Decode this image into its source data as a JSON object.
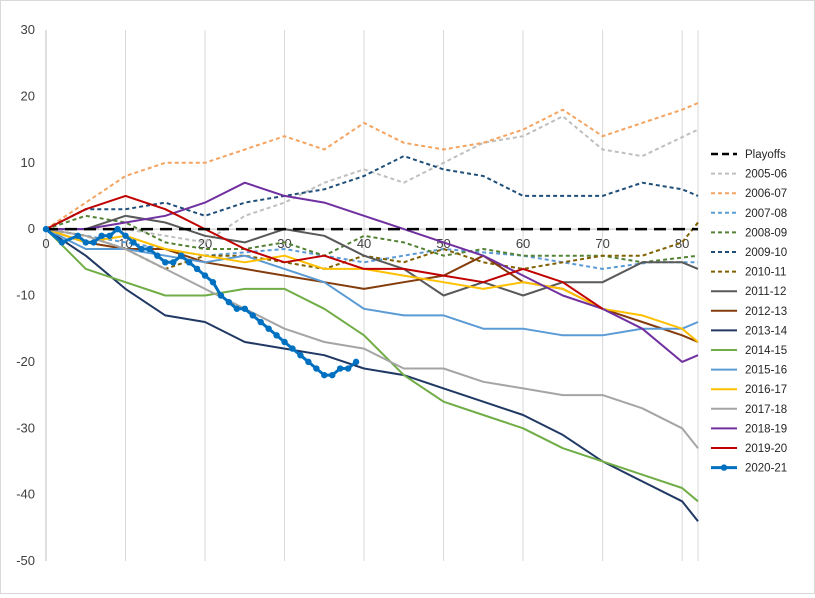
{
  "chart_data": {
    "type": "line",
    "title": "",
    "xlabel": "",
    "ylabel": "",
    "xlim": [
      0,
      82
    ],
    "ylim": [
      -50,
      30
    ],
    "x_ticks": [
      0,
      10,
      20,
      30,
      40,
      50,
      60,
      70,
      80
    ],
    "x_tick_labels": [
      "0",
      "10",
      "20",
      "30",
      "40",
      "50",
      "60",
      "70",
      "80"
    ],
    "y_ticks": [
      30,
      20,
      10,
      0,
      -10,
      -20,
      -30,
      -40,
      -50
    ],
    "y_tick_labels": [
      "30",
      "20",
      "10",
      "0",
      "-10",
      "-20",
      "-30",
      "-40",
      "-50"
    ],
    "grid": "vertical",
    "legend_position": "right",
    "series": [
      {
        "name": "Playoffs",
        "color": "#000000",
        "style": "dash-thick",
        "points": [
          [
            0,
            0
          ],
          [
            82,
            0
          ]
        ]
      },
      {
        "name": "2005-06",
        "color": "#bfbfbf",
        "style": "dash",
        "points": [
          [
            0,
            0
          ],
          [
            10,
            0
          ],
          [
            20,
            -2
          ],
          [
            25,
            2
          ],
          [
            30,
            4
          ],
          [
            35,
            7
          ],
          [
            40,
            9
          ],
          [
            45,
            7
          ],
          [
            50,
            10
          ],
          [
            55,
            13
          ],
          [
            60,
            14
          ],
          [
            65,
            17
          ],
          [
            70,
            12
          ],
          [
            75,
            11
          ],
          [
            82,
            15
          ]
        ]
      },
      {
        "name": "2006-07",
        "color": "#f4a460",
        "style": "dash",
        "points": [
          [
            0,
            0
          ],
          [
            5,
            4
          ],
          [
            10,
            8
          ],
          [
            15,
            10
          ],
          [
            20,
            10
          ],
          [
            25,
            12
          ],
          [
            30,
            14
          ],
          [
            35,
            12
          ],
          [
            40,
            16
          ],
          [
            45,
            13
          ],
          [
            50,
            12
          ],
          [
            55,
            13
          ],
          [
            60,
            15
          ],
          [
            65,
            18
          ],
          [
            70,
            14
          ],
          [
            75,
            16
          ],
          [
            80,
            18
          ],
          [
            82,
            19
          ]
        ]
      },
      {
        "name": "2007-08",
        "color": "#5b9bd5",
        "style": "dash",
        "points": [
          [
            0,
            0
          ],
          [
            10,
            -2
          ],
          [
            20,
            -4
          ],
          [
            30,
            -3
          ],
          [
            40,
            -5
          ],
          [
            50,
            -3
          ],
          [
            60,
            -4
          ],
          [
            70,
            -6
          ],
          [
            76,
            -5
          ],
          [
            82,
            -5
          ]
        ]
      },
      {
        "name": "2008-09",
        "color": "#548235",
        "style": "dash",
        "points": [
          [
            0,
            0
          ],
          [
            5,
            2
          ],
          [
            10,
            1
          ],
          [
            15,
            -2
          ],
          [
            20,
            -3
          ],
          [
            25,
            -3
          ],
          [
            30,
            -2
          ],
          [
            35,
            -4
          ],
          [
            40,
            -1
          ],
          [
            45,
            -2
          ],
          [
            50,
            -4
          ],
          [
            55,
            -3
          ],
          [
            60,
            -4
          ],
          [
            65,
            -4
          ],
          [
            70,
            -4
          ],
          [
            75,
            -5
          ],
          [
            82,
            -4
          ]
        ]
      },
      {
        "name": "2009-10",
        "color": "#1f4e79",
        "style": "dash",
        "points": [
          [
            0,
            0
          ],
          [
            5,
            3
          ],
          [
            10,
            3
          ],
          [
            15,
            4
          ],
          [
            20,
            2
          ],
          [
            25,
            4
          ],
          [
            30,
            5
          ],
          [
            35,
            6
          ],
          [
            40,
            8
          ],
          [
            45,
            11
          ],
          [
            50,
            9
          ],
          [
            55,
            8
          ],
          [
            60,
            5
          ],
          [
            65,
            5
          ],
          [
            70,
            5
          ],
          [
            75,
            7
          ],
          [
            80,
            6
          ],
          [
            82,
            5
          ]
        ]
      },
      {
        "name": "2010-11",
        "color": "#806000",
        "style": "dash",
        "points": [
          [
            0,
            0
          ],
          [
            5,
            -1
          ],
          [
            10,
            -3
          ],
          [
            15,
            -6
          ],
          [
            20,
            -4
          ],
          [
            25,
            -4
          ],
          [
            30,
            -5
          ],
          [
            35,
            -6
          ],
          [
            40,
            -4
          ],
          [
            45,
            -5
          ],
          [
            50,
            -3
          ],
          [
            55,
            -5
          ],
          [
            60,
            -6
          ],
          [
            65,
            -5
          ],
          [
            70,
            -4
          ],
          [
            75,
            -4
          ],
          [
            80,
            -2
          ],
          [
            82,
            1
          ]
        ]
      },
      {
        "name": "2011-12",
        "color": "#595959",
        "style": "solid",
        "points": [
          [
            0,
            0
          ],
          [
            5,
            0
          ],
          [
            10,
            2
          ],
          [
            15,
            1
          ],
          [
            20,
            -1
          ],
          [
            25,
            -2
          ],
          [
            30,
            0
          ],
          [
            35,
            -1
          ],
          [
            40,
            -4
          ],
          [
            45,
            -6
          ],
          [
            50,
            -10
          ],
          [
            55,
            -8
          ],
          [
            60,
            -10
          ],
          [
            65,
            -8
          ],
          [
            70,
            -8
          ],
          [
            75,
            -5
          ],
          [
            80,
            -5
          ],
          [
            82,
            -6
          ]
        ]
      },
      {
        "name": "2012-13",
        "color": "#843c0c",
        "style": "solid",
        "points": [
          [
            0,
            0
          ],
          [
            5,
            -2
          ],
          [
            10,
            -3
          ],
          [
            15,
            -3
          ],
          [
            20,
            -5
          ],
          [
            25,
            -6
          ],
          [
            30,
            -7
          ],
          [
            35,
            -8
          ],
          [
            40,
            -9
          ],
          [
            45,
            -8
          ],
          [
            50,
            -7
          ],
          [
            55,
            -4
          ],
          [
            60,
            -8
          ],
          [
            65,
            -9
          ],
          [
            70,
            -12
          ],
          [
            75,
            -14
          ],
          [
            80,
            -16
          ],
          [
            82,
            -17
          ]
        ]
      },
      {
        "name": "2013-14",
        "color": "#203864",
        "style": "solid",
        "points": [
          [
            0,
            0
          ],
          [
            5,
            -4
          ],
          [
            10,
            -9
          ],
          [
            15,
            -13
          ],
          [
            20,
            -14
          ],
          [
            25,
            -17
          ],
          [
            30,
            -18
          ],
          [
            35,
            -19
          ],
          [
            40,
            -21
          ],
          [
            45,
            -22
          ],
          [
            50,
            -24
          ],
          [
            55,
            -26
          ],
          [
            60,
            -28
          ],
          [
            65,
            -31
          ],
          [
            70,
            -35
          ],
          [
            75,
            -38
          ],
          [
            80,
            -41
          ],
          [
            82,
            -44
          ]
        ]
      },
      {
        "name": "2014-15",
        "color": "#70ad47",
        "style": "solid",
        "points": [
          [
            0,
            0
          ],
          [
            5,
            -6
          ],
          [
            10,
            -8
          ],
          [
            15,
            -10
          ],
          [
            20,
            -10
          ],
          [
            25,
            -9
          ],
          [
            30,
            -9
          ],
          [
            35,
            -12
          ],
          [
            40,
            -16
          ],
          [
            45,
            -22
          ],
          [
            50,
            -26
          ],
          [
            55,
            -28
          ],
          [
            60,
            -30
          ],
          [
            65,
            -33
          ],
          [
            70,
            -35
          ],
          [
            75,
            -37
          ],
          [
            80,
            -39
          ],
          [
            82,
            -41
          ]
        ]
      },
      {
        "name": "2015-16",
        "color": "#5b9bd5",
        "style": "solid",
        "points": [
          [
            0,
            0
          ],
          [
            5,
            -3
          ],
          [
            10,
            -3
          ],
          [
            15,
            -4
          ],
          [
            20,
            -5
          ],
          [
            25,
            -4
          ],
          [
            30,
            -6
          ],
          [
            35,
            -8
          ],
          [
            40,
            -12
          ],
          [
            45,
            -13
          ],
          [
            50,
            -13
          ],
          [
            55,
            -15
          ],
          [
            60,
            -15
          ],
          [
            65,
            -16
          ],
          [
            70,
            -16
          ],
          [
            75,
            -15
          ],
          [
            80,
            -15
          ],
          [
            82,
            -14
          ]
        ]
      },
      {
        "name": "2016-17",
        "color": "#ffc000",
        "style": "solid",
        "points": [
          [
            0,
            0
          ],
          [
            5,
            -2
          ],
          [
            10,
            -1
          ],
          [
            15,
            -3
          ],
          [
            20,
            -4
          ],
          [
            25,
            -5
          ],
          [
            30,
            -4
          ],
          [
            35,
            -6
          ],
          [
            40,
            -6
          ],
          [
            45,
            -7
          ],
          [
            50,
            -8
          ],
          [
            55,
            -9
          ],
          [
            60,
            -8
          ],
          [
            65,
            -9
          ],
          [
            70,
            -12
          ],
          [
            75,
            -13
          ],
          [
            80,
            -15
          ],
          [
            82,
            -17
          ]
        ]
      },
      {
        "name": "2017-18",
        "color": "#a5a5a5",
        "style": "solid",
        "points": [
          [
            0,
            0
          ],
          [
            5,
            -1
          ],
          [
            10,
            -3
          ],
          [
            15,
            -6
          ],
          [
            20,
            -9
          ],
          [
            25,
            -12
          ],
          [
            30,
            -15
          ],
          [
            35,
            -17
          ],
          [
            40,
            -18
          ],
          [
            45,
            -21
          ],
          [
            50,
            -21
          ],
          [
            55,
            -23
          ],
          [
            60,
            -24
          ],
          [
            65,
            -25
          ],
          [
            70,
            -25
          ],
          [
            75,
            -27
          ],
          [
            80,
            -30
          ],
          [
            82,
            -33
          ]
        ]
      },
      {
        "name": "2018-19",
        "color": "#7030a0",
        "style": "solid",
        "points": [
          [
            0,
            0
          ],
          [
            5,
            0
          ],
          [
            10,
            1
          ],
          [
            15,
            2
          ],
          [
            20,
            4
          ],
          [
            25,
            7
          ],
          [
            30,
            5
          ],
          [
            35,
            4
          ],
          [
            40,
            2
          ],
          [
            45,
            0
          ],
          [
            50,
            -2
          ],
          [
            55,
            -4
          ],
          [
            60,
            -7
          ],
          [
            65,
            -10
          ],
          [
            70,
            -12
          ],
          [
            75,
            -15
          ],
          [
            80,
            -20
          ],
          [
            82,
            -19
          ]
        ]
      },
      {
        "name": "2019-20",
        "color": "#c00000",
        "style": "solid",
        "points": [
          [
            0,
            0
          ],
          [
            5,
            3
          ],
          [
            10,
            5
          ],
          [
            15,
            3
          ],
          [
            20,
            0
          ],
          [
            25,
            -3
          ],
          [
            30,
            -5
          ],
          [
            35,
            -4
          ],
          [
            40,
            -6
          ],
          [
            45,
            -6
          ],
          [
            50,
            -7
          ],
          [
            55,
            -8
          ],
          [
            60,
            -6
          ],
          [
            65,
            -8
          ],
          [
            70,
            -12
          ]
        ]
      },
      {
        "name": "2020-21",
        "color": "#0070c0",
        "style": "solid-markers",
        "points": [
          [
            0,
            0
          ],
          [
            2,
            -2
          ],
          [
            4,
            -1
          ],
          [
            5,
            -2
          ],
          [
            6,
            -2
          ],
          [
            7,
            -1
          ],
          [
            8,
            -1
          ],
          [
            9,
            0
          ],
          [
            10,
            -1
          ],
          [
            11,
            -2
          ],
          [
            12,
            -3
          ],
          [
            13,
            -3
          ],
          [
            14,
            -4
          ],
          [
            15,
            -5
          ],
          [
            16,
            -5
          ],
          [
            17,
            -4
          ],
          [
            18,
            -5
          ],
          [
            19,
            -6
          ],
          [
            20,
            -7
          ],
          [
            21,
            -8
          ],
          [
            22,
            -10
          ],
          [
            23,
            -11
          ],
          [
            24,
            -12
          ],
          [
            25,
            -12
          ],
          [
            26,
            -13
          ],
          [
            27,
            -14
          ],
          [
            28,
            -15
          ],
          [
            29,
            -16
          ],
          [
            30,
            -17
          ],
          [
            31,
            -18
          ],
          [
            32,
            -19
          ],
          [
            33,
            -20
          ],
          [
            34,
            -21
          ],
          [
            35,
            -22
          ],
          [
            36,
            -22
          ],
          [
            37,
            -21
          ],
          [
            38,
            -21
          ],
          [
            39,
            -20
          ]
        ]
      }
    ]
  }
}
